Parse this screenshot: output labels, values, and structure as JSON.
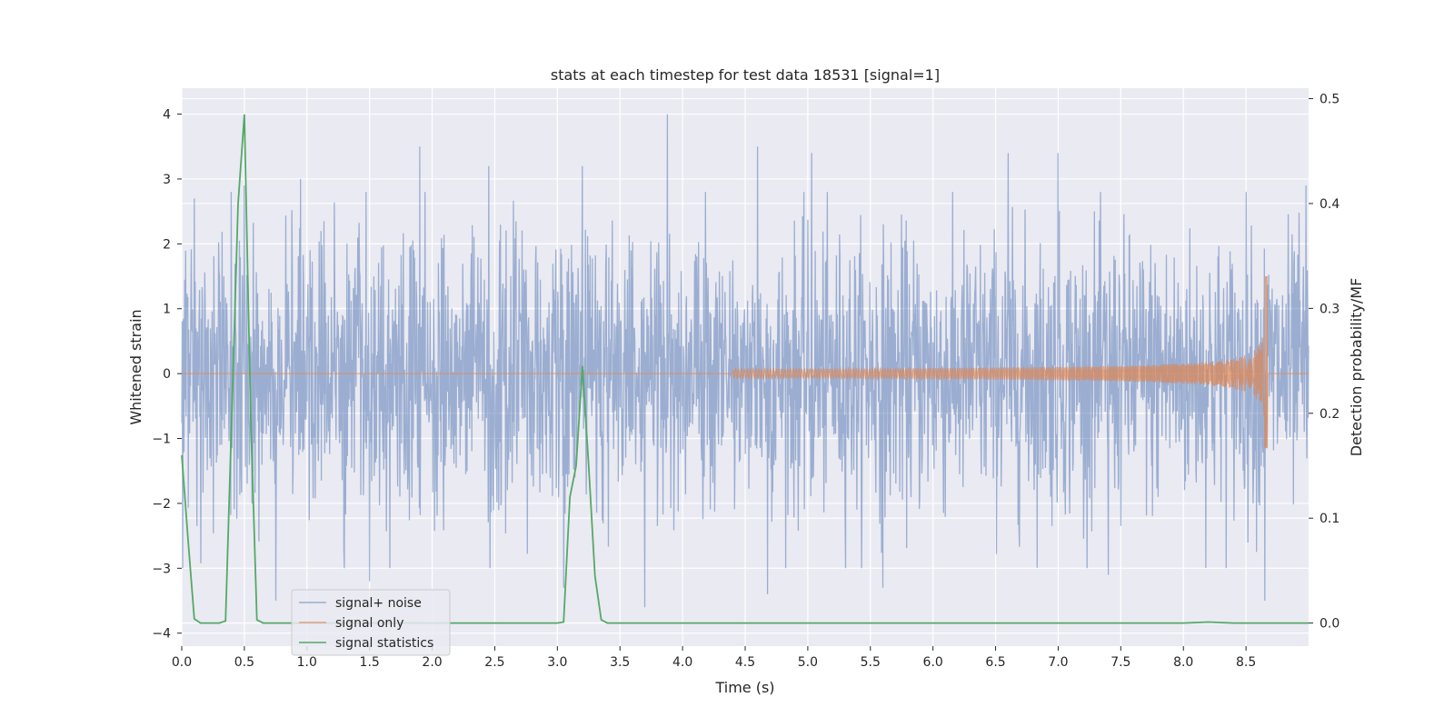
{
  "chart_data": {
    "type": "line",
    "title": "stats at each timestep for test data 18531 [signal=1]",
    "xlabel": "Time (s)",
    "ylabel": "Whitened strain",
    "y2label": "Detection probability/MF",
    "xlim": [
      0.0,
      9.0
    ],
    "ylim": [
      -4.2,
      4.4
    ],
    "y2lim": [
      -0.022,
      0.51
    ],
    "xticks": [
      "0.0",
      "0.5",
      "1.0",
      "1.5",
      "2.0",
      "2.5",
      "3.0",
      "3.5",
      "4.0",
      "4.5",
      "5.0",
      "5.5",
      "6.0",
      "6.5",
      "7.0",
      "7.5",
      "8.0",
      "8.5"
    ],
    "xtick_values": [
      0.0,
      0.5,
      1.0,
      1.5,
      2.0,
      2.5,
      3.0,
      3.5,
      4.0,
      4.5,
      5.0,
      5.5,
      6.0,
      6.5,
      7.0,
      7.5,
      8.0,
      8.5
    ],
    "yticks": [
      "4",
      "3",
      "2",
      "1",
      "0",
      "−1",
      "−2",
      "−3",
      "−4"
    ],
    "ytick_values": [
      4,
      3,
      2,
      1,
      0,
      -1,
      -2,
      -3,
      -4
    ],
    "y2ticks": [
      "0.5",
      "0.4",
      "0.3",
      "0.2",
      "0.1",
      "0.0"
    ],
    "y2tick_values": [
      0.5,
      0.4,
      0.3,
      0.2,
      0.1,
      0.0
    ],
    "grid": true,
    "legend_position": "lower-left",
    "colors": {
      "background": "#eaeaf2",
      "grid": "#ffffff",
      "signal_noise": "#4c72b0",
      "signal_only": "#dd8452",
      "signal_statistics": "#55a868"
    },
    "series": [
      {
        "name": "signal+ noise",
        "axis": "left",
        "description_values": {
          "amplitude_range": [
            -3.6,
            4.0
          ],
          "peak_times": [
            [
              0.1,
              2.7
            ],
            [
              0.5,
              2.9
            ],
            [
              0.75,
              -3.5
            ],
            [
              0.95,
              3.0
            ],
            [
              1.5,
              -3.2
            ],
            [
              1.9,
              3.5
            ],
            [
              2.45,
              3.2
            ],
            [
              3.05,
              -3.3
            ],
            [
              3.2,
              3.2
            ],
            [
              3.7,
              -3.6
            ],
            [
              3.88,
              4.0
            ],
            [
              4.6,
              3.5
            ],
            [
              4.68,
              -3.4
            ],
            [
              5.03,
              3.4
            ],
            [
              5.6,
              -3.3
            ],
            [
              6.6,
              3.4
            ],
            [
              7.0,
              3.4
            ],
            [
              7.4,
              -3.1
            ],
            [
              8.5,
              2.8
            ],
            [
              8.65,
              -3.5
            ],
            [
              8.98,
              2.9
            ]
          ]
        }
      },
      {
        "name": "signal only",
        "axis": "left",
        "description_values": {
          "chirp_start": 4.4,
          "chirp_merger": 8.67,
          "merger_amplitude_top": 1.5,
          "merger_amplitude_bottom": -1.15
        }
      },
      {
        "name": "signal statistics",
        "axis": "right",
        "x": [
          0.0,
          0.05,
          0.1,
          0.15,
          0.2,
          0.25,
          0.3,
          0.35,
          0.4,
          0.45,
          0.5,
          0.55,
          0.6,
          0.65,
          0.7,
          1.0,
          1.5,
          2.0,
          2.5,
          3.0,
          3.05,
          3.1,
          3.15,
          3.2,
          3.25,
          3.3,
          3.35,
          3.4,
          3.5,
          4.0,
          5.0,
          6.0,
          7.0,
          7.5,
          8.0,
          8.2,
          8.4,
          9.0
        ],
        "values": [
          0.16,
          0.08,
          0.004,
          0.0,
          0.0,
          0.0,
          0.0,
          0.002,
          0.2,
          0.4,
          0.485,
          0.2,
          0.003,
          0.0,
          0.0,
          0.0,
          0.0,
          0.0,
          0.0,
          0.0,
          0.001,
          0.12,
          0.15,
          0.245,
          0.15,
          0.045,
          0.003,
          0.0,
          0.0,
          0.0,
          0.0,
          0.0,
          0.0,
          0.0,
          0.0,
          0.001,
          0.0,
          0.0
        ]
      }
    ]
  }
}
